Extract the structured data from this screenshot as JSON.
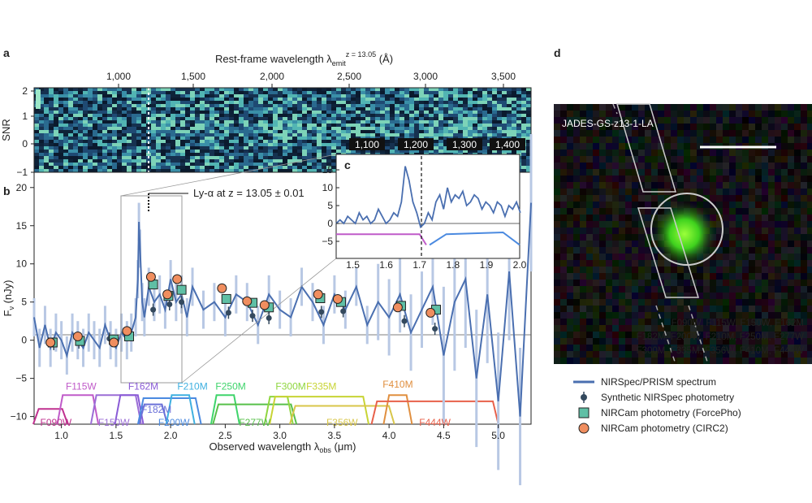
{
  "figure": {
    "panel_labels": [
      "a",
      "b",
      "c",
      "d"
    ],
    "top_axis": {
      "label_prefix": "Rest-frame wavelength λ",
      "label_sub": "emit",
      "label_sup": "z = 13.05",
      "label_suffix": " (Å)",
      "ticks": [
        "1,000",
        "1,500",
        "2,000",
        "2,500",
        "3,000",
        "3,500"
      ]
    },
    "snr_panel": {
      "ylabel": "SNR",
      "yticks": [
        "2",
        "1",
        "0",
        "−1"
      ],
      "inset_ticks": [
        "1,100",
        "1,200",
        "1,300",
        "1,400"
      ]
    },
    "main_panel": {
      "ylabel": "F",
      "ylabel_sub": "ν",
      "ylabel_unit": " (nJy)",
      "yticks": [
        "20",
        "15",
        "10",
        "5",
        "0",
        "−5",
        "−10"
      ],
      "xlabel_prefix": "Observed wavelength λ",
      "xlabel_sub": "obs",
      "xlabel_unit": " (μm)",
      "xticks": [
        "1.0",
        "1.5",
        "2.0",
        "2.5",
        "3.0",
        "3.5",
        "4.0",
        "4.5",
        "5.0"
      ],
      "annotation": "Ly-α at z = 13.05 ± 0.01"
    },
    "inset_c": {
      "yticks": [
        "15",
        "10",
        "5",
        "0",
        "−5"
      ],
      "xticks": [
        "1.5",
        "1.6",
        "1.7",
        "1.8",
        "1.9",
        "2.0"
      ]
    },
    "image_panel": {
      "title": "JADES-GS-z13-1-LA",
      "rgb_rows": [
        {
          "text": "F090W, F115W, F150W, F162M",
          "color": "#6b8fd8"
        },
        {
          "text": "F182M, F200W, F210M, F250M, F277W",
          "color": "#3fd04a"
        },
        {
          "text": "F300M, F335M, F356W, F410M, F444W",
          "color": "#e83a3a"
        }
      ]
    },
    "legend": [
      {
        "label": "NIRSpec/PRISM spectrum",
        "marker": "line",
        "color": "#4a6fb0"
      },
      {
        "label": "Synthetic NIRSpec photometry",
        "marker": "dot-errorbar",
        "color": "#34495e"
      },
      {
        "label": "NIRCam photometry (ForcePho)",
        "marker": "square",
        "color": "#5fbfa5"
      },
      {
        "label": "NIRCam photometry (CIRC2)",
        "marker": "circle",
        "color": "#f08e5f"
      }
    ]
  },
  "chart_data": {
    "type": "line",
    "title": "",
    "xlabel": "Observed wavelength λobs (μm)",
    "ylabel": "Fν (nJy)",
    "xlim": [
      0.75,
      5.3
    ],
    "ylim": [
      -11,
      22
    ],
    "series": [
      {
        "name": "NIRSpec/PRISM spectrum",
        "x": [
          0.75,
          0.8,
          0.85,
          0.9,
          0.95,
          1.0,
          1.05,
          1.1,
          1.15,
          1.2,
          1.25,
          1.3,
          1.35,
          1.4,
          1.45,
          1.5,
          1.55,
          1.6,
          1.64,
          1.68,
          1.7,
          1.71,
          1.72,
          1.74,
          1.76,
          1.8,
          1.85,
          1.9,
          1.95,
          2.0,
          2.05,
          2.1,
          2.15,
          2.2,
          2.3,
          2.4,
          2.5,
          2.6,
          2.7,
          2.8,
          2.9,
          3.0,
          3.1,
          3.2,
          3.3,
          3.4,
          3.5,
          3.6,
          3.7,
          3.8,
          3.9,
          4.0,
          4.1,
          4.2,
          4.3,
          4.4,
          4.5,
          4.6,
          4.7,
          4.8,
          4.9,
          5.0,
          5.1,
          5.2,
          5.3
        ],
        "y": [
          3,
          -1,
          2,
          -1,
          1,
          0,
          -2,
          1,
          0,
          -1,
          1,
          0,
          -1,
          2,
          0,
          -1,
          1,
          0,
          1,
          3,
          8,
          15.5,
          12,
          5,
          3,
          7,
          5,
          6,
          4,
          8,
          5,
          6,
          3,
          7,
          4,
          5,
          3,
          6,
          5,
          2,
          6,
          4,
          3,
          7,
          5,
          2,
          6,
          4,
          7,
          2,
          5,
          3,
          6,
          1,
          4,
          7,
          -2,
          5,
          8,
          -5,
          6,
          -8,
          9,
          -10,
          18
        ]
      },
      {
        "name": "Synthetic NIRSpec photometry",
        "x": [
          0.93,
          1.16,
          1.44,
          1.61,
          1.84,
          1.99,
          2.1,
          2.53,
          2.75,
          2.9,
          3.38,
          3.58,
          4.14,
          4.42
        ],
        "y": [
          -0.5,
          -0.3,
          0.2,
          1.0,
          4.0,
          4.7,
          5.0,
          3.6,
          3.2,
          2.9,
          3.7,
          3.8,
          2.5,
          1.5
        ]
      },
      {
        "name": "NIRCam photometry (ForcePho)",
        "x": [
          0.92,
          1.17,
          1.48,
          1.62,
          1.84,
          1.98,
          2.1,
          2.51,
          2.75,
          2.9,
          3.37,
          3.56,
          4.11,
          4.43
        ],
        "y": [
          -0.3,
          -0.1,
          0.1,
          0.5,
          7.3,
          5.8,
          6.6,
          5.4,
          4.9,
          4.3,
          5.5,
          5.0,
          4.5,
          4.0
        ]
      },
      {
        "name": "NIRCam photometry (CIRC2)",
        "x": [
          0.9,
          1.15,
          1.48,
          1.6,
          1.82,
          1.97,
          2.06,
          2.47,
          2.7,
          2.86,
          3.35,
          3.53,
          4.08,
          4.38
        ],
        "y": [
          -0.3,
          0.5,
          -0.3,
          1.2,
          8.3,
          6.0,
          8.0,
          6.8,
          5.1,
          4.6,
          6.0,
          5.4,
          4.3,
          3.6
        ]
      }
    ],
    "filters": [
      "F090W",
      "F115W",
      "F150W",
      "F162M",
      "F182M",
      "F200W",
      "F210M",
      "F250M",
      "F277W",
      "F300M",
      "F335M",
      "F356W",
      "F410M",
      "F444W"
    ],
    "filter_centers_um": [
      0.9,
      1.15,
      1.5,
      1.62,
      1.84,
      1.99,
      2.09,
      2.5,
      2.77,
      2.99,
      3.36,
      3.57,
      4.08,
      4.42
    ],
    "annotations": [
      "Ly-α at z = 13.05 ± 0.01"
    ],
    "legend_position": "below-right",
    "grid": false
  }
}
